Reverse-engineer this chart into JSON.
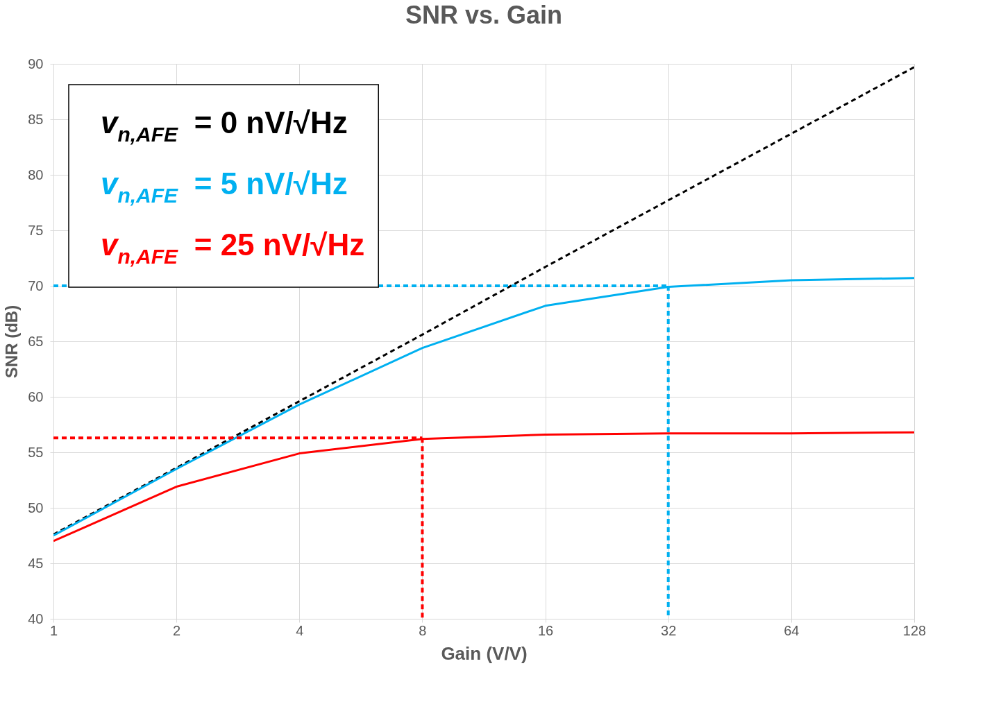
{
  "chart_data": {
    "type": "line",
    "title": "SNR vs. Gain",
    "xlabel": "Gain (V/V)",
    "ylabel": "SNR (dB)",
    "log": "x",
    "xlim": [
      1,
      128
    ],
    "xticks": [
      1,
      2,
      4,
      8,
      16,
      32,
      64,
      128
    ],
    "ylim": [
      40,
      90
    ],
    "yticks": [
      40,
      45,
      50,
      55,
      60,
      65,
      70,
      75,
      80,
      85,
      90
    ],
    "grid": true,
    "legend": "top left",
    "series": [
      {
        "name": "v$_{n,AFE}$ = 0 nV/√Hz",
        "color": "#000000",
        "line_style": "dashed",
        "x": [
          1,
          2,
          4,
          8,
          16,
          32,
          64,
          128
        ],
        "values": [
          47.6,
          53.6,
          59.6,
          65.6,
          71.7,
          77.7,
          83.7,
          89.7
        ]
      },
      {
        "name": "v$_{n,AFE}$ = 5 nV/√Hz",
        "color": "#00b0f0",
        "line_style": "solid",
        "x": [
          1,
          2,
          4,
          8,
          16,
          32,
          64,
          128
        ],
        "values": [
          47.5,
          53.5,
          59.3,
          64.4,
          68.2,
          69.9,
          70.5,
          70.7
        ]
      },
      {
        "name": "v$_{n,AFE}$ = 25 nV/√Hz",
        "color": "#ff0000",
        "line_style": "solid",
        "x": [
          1,
          2,
          4,
          8,
          16,
          32,
          64,
          128
        ],
        "values": [
          47.0,
          51.9,
          54.9,
          56.2,
          56.6,
          56.7,
          56.7,
          56.8
        ]
      },
      {
        "color": "#00b0f0",
        "line_style": "dashed",
        "x": [
          1,
          32
        ],
        "values": [
          70,
          70
        ]
      },
      {
        "color": "#00b0f0",
        "line_style": "dashed",
        "x": [
          32,
          32
        ],
        "values": [
          70,
          40
        ]
      },
      {
        "color": "#ff0000",
        "line_style": "dashed",
        "x": [
          1,
          8
        ],
        "values": [
          56.3,
          56.3
        ]
      },
      {
        "color": "#ff0000",
        "line_style": "dashed",
        "x": [
          8,
          8
        ],
        "values": [
          56.3,
          40
        ]
      }
    ]
  }
}
